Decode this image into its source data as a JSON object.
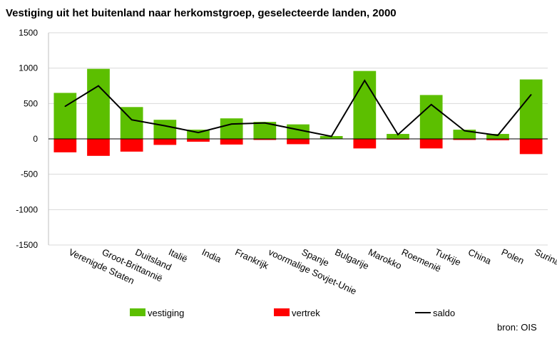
{
  "chart_data": {
    "type": "bar",
    "title": "Vestiging uit het buitenland naar herkomstgroep, geselecteerde landen, 2000",
    "source": "bron: OIS",
    "ylim": [
      -1500,
      1500
    ],
    "yticks": [
      1500,
      1000,
      500,
      0,
      -500,
      -1000,
      -1500
    ],
    "grid": true,
    "legend_position": "bottom",
    "categories": [
      "Verenigde Staten",
      "Groot-Brittannië",
      "Duitsland",
      "Italië",
      "India",
      "Frankrijk",
      "voormalige Sovjet-Unie",
      "Spanje",
      "Bulgarije",
      "Marokko",
      "Roemenië",
      "Turkije",
      "China",
      "Polen",
      "Suriname"
    ],
    "series": [
      {
        "name": "vestiging",
        "type": "bar",
        "color": "#5cbf00",
        "values": [
          650,
          990,
          450,
          270,
          130,
          290,
          240,
          205,
          40,
          960,
          70,
          620,
          130,
          70,
          840
        ]
      },
      {
        "name": "vertrek",
        "type": "bar",
        "color": "#ff0000",
        "values": [
          -190,
          -240,
          -180,
          -85,
          -40,
          -80,
          -15,
          -75,
          -5,
          -135,
          -10,
          -135,
          -15,
          -20,
          -215
        ]
      },
      {
        "name": "saldo",
        "type": "line",
        "color": "#000000",
        "values": [
          460,
          750,
          270,
          185,
          90,
          210,
          225,
          130,
          35,
          825,
          60,
          485,
          115,
          50,
          625
        ]
      }
    ]
  }
}
